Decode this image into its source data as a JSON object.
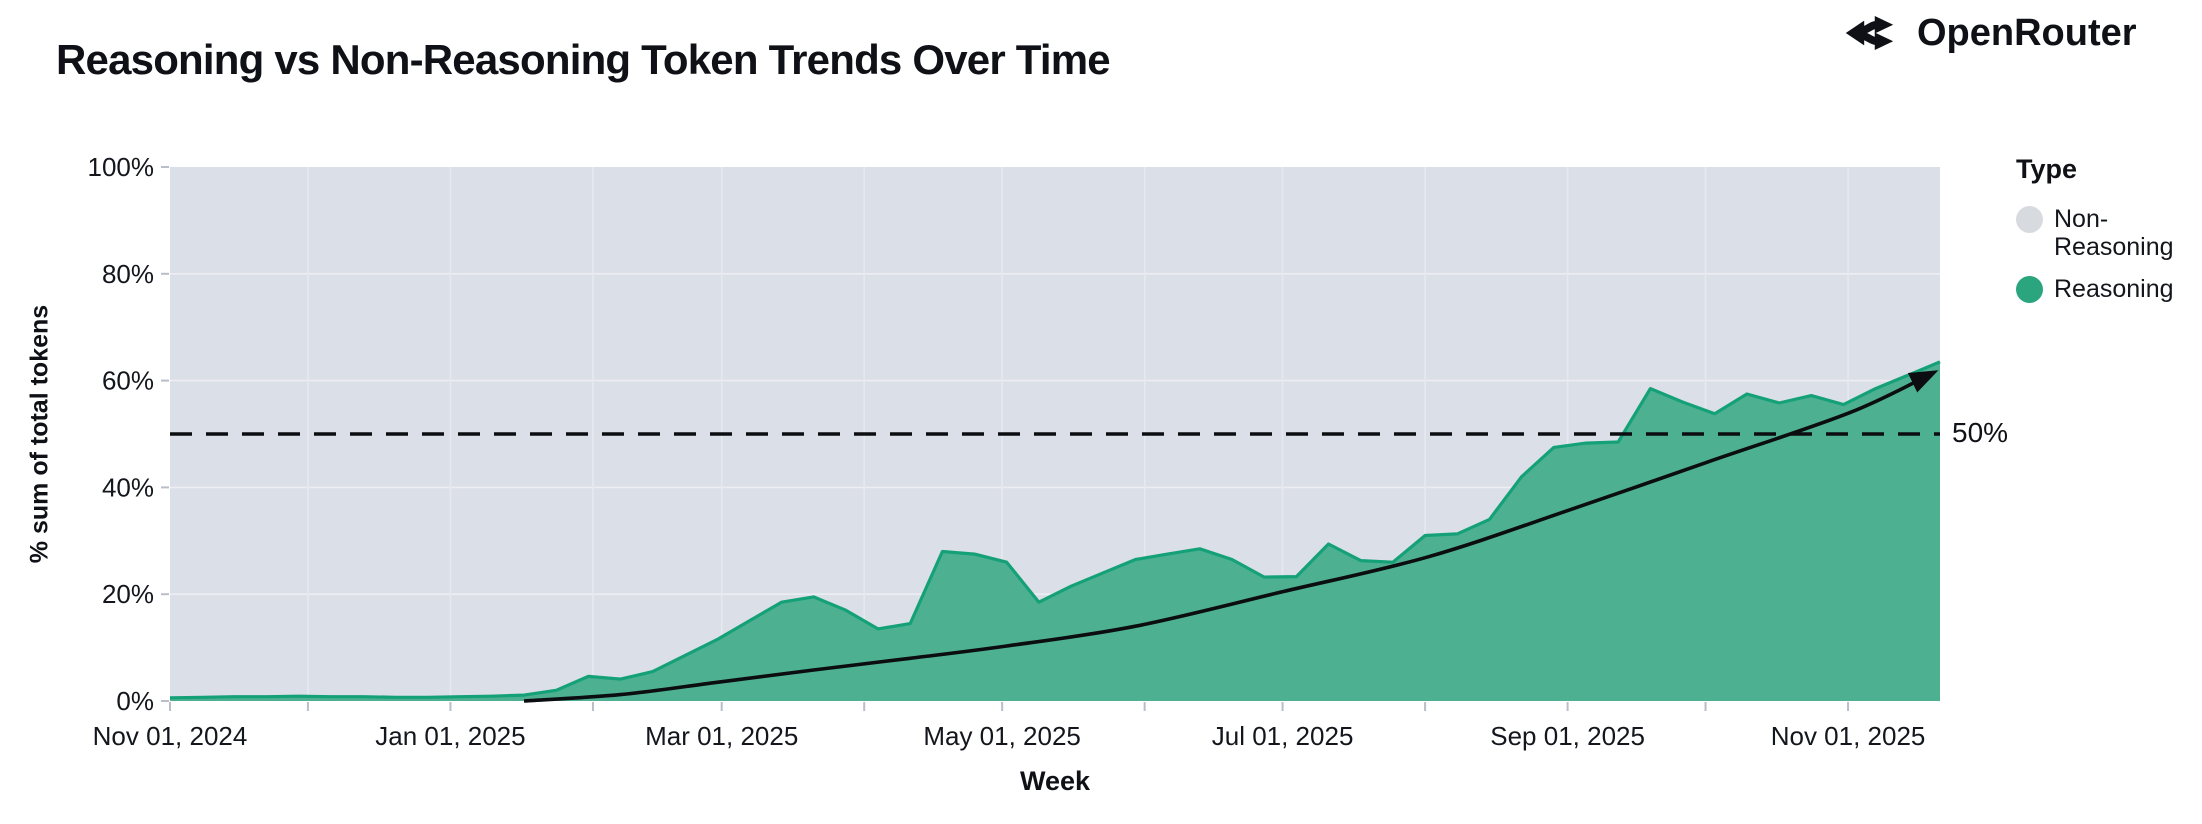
{
  "header": {
    "title": "Reasoning vs Non-Reasoning Token Trends Over Time",
    "brand": "OpenRouter"
  },
  "colors": {
    "reasoning_fill": "#4DB191",
    "reasoning_edge": "#15A177",
    "plot_background": "#DBDFE8",
    "grid_horizontal": "#ECEEF4",
    "grid_vertical": "#E6E9F0",
    "reference_line": "#0B0D11",
    "trend_arrow": "#0B0D11",
    "tick_mark": "#B9BEC9",
    "text": "#14161D",
    "legend_gray": "#D7DADF",
    "legend_green": "#2BA57E"
  },
  "chart_data": {
    "type": "area",
    "variant": "100% stacked area, weekly",
    "title": "Reasoning vs Non-Reasoning Token Trends Over Time",
    "xlabel": "Week",
    "ylabel": "% sum of total tokens",
    "ylim": [
      0,
      100
    ],
    "grid": true,
    "y_ticks": [
      {
        "value": 0,
        "label": "0%"
      },
      {
        "value": 20,
        "label": "20%"
      },
      {
        "value": 40,
        "label": "40%"
      },
      {
        "value": 60,
        "label": "60%"
      },
      {
        "value": 80,
        "label": "80%"
      },
      {
        "value": 100,
        "label": "100%"
      }
    ],
    "x_ticks": [
      {
        "date": "2024-11-01",
        "label": "Nov 01, 2024"
      },
      {
        "date": "2024-12-01",
        "label": ""
      },
      {
        "date": "2025-01-01",
        "label": "Jan 01, 2025"
      },
      {
        "date": "2025-02-01",
        "label": ""
      },
      {
        "date": "2025-03-01",
        "label": "Mar 01, 2025"
      },
      {
        "date": "2025-04-01",
        "label": ""
      },
      {
        "date": "2025-05-01",
        "label": "May 01, 2025"
      },
      {
        "date": "2025-06-01",
        "label": ""
      },
      {
        "date": "2025-07-01",
        "label": "Jul 01, 2025"
      },
      {
        "date": "2025-08-01",
        "label": ""
      },
      {
        "date": "2025-09-01",
        "label": "Sep 01, 2025"
      },
      {
        "date": "2025-10-01",
        "label": ""
      },
      {
        "date": "2025-11-01",
        "label": "Nov 01, 2025"
      }
    ],
    "weeks": [
      "2024-11-01",
      "2024-11-08",
      "2024-11-15",
      "2024-11-22",
      "2024-11-29",
      "2024-12-06",
      "2024-12-13",
      "2024-12-20",
      "2024-12-27",
      "2025-01-03",
      "2025-01-10",
      "2025-01-17",
      "2025-01-24",
      "2025-01-31",
      "2025-02-07",
      "2025-02-14",
      "2025-02-21",
      "2025-02-28",
      "2025-03-07",
      "2025-03-14",
      "2025-03-21",
      "2025-03-28",
      "2025-04-04",
      "2025-04-11",
      "2025-04-18",
      "2025-04-25",
      "2025-05-02",
      "2025-05-09",
      "2025-05-16",
      "2025-05-23",
      "2025-05-30",
      "2025-06-06",
      "2025-06-13",
      "2025-06-20",
      "2025-06-27",
      "2025-07-04",
      "2025-07-11",
      "2025-07-18",
      "2025-07-25",
      "2025-08-01",
      "2025-08-08",
      "2025-08-15",
      "2025-08-22",
      "2025-08-29",
      "2025-09-05",
      "2025-09-12",
      "2025-09-19",
      "2025-09-26",
      "2025-10-03",
      "2025-10-10",
      "2025-10-17",
      "2025-10-24",
      "2025-10-31",
      "2025-11-07",
      "2025-11-14",
      "2025-11-21"
    ],
    "series": [
      {
        "name": "Reasoning",
        "color": "#4DB191",
        "values": [
          0.6,
          0.7,
          0.8,
          0.8,
          0.9,
          0.8,
          0.8,
          0.7,
          0.7,
          0.8,
          0.9,
          1.1,
          2.0,
          4.6,
          4.1,
          5.5,
          8.5,
          11.5,
          15.0,
          18.5,
          19.5,
          17.0,
          13.5,
          14.5,
          28.0,
          27.5,
          26.0,
          18.5,
          21.5,
          24.0,
          26.5,
          27.5,
          28.5,
          26.5,
          23.2,
          23.3,
          29.4,
          26.3,
          26.0,
          31.0,
          31.3,
          34.0,
          42.0,
          47.5,
          48.3,
          48.5,
          58.5,
          56.0,
          53.8,
          57.5,
          55.8,
          57.2,
          55.5,
          58.5,
          61.0,
          63.5
        ]
      },
      {
        "name": "Non-Reasoning",
        "color": "#DBDFE8",
        "values": [
          99.4,
          99.3,
          99.2,
          99.2,
          99.1,
          99.2,
          99.2,
          99.3,
          99.3,
          99.2,
          99.1,
          98.9,
          98.0,
          95.4,
          95.9,
          94.5,
          91.5,
          88.5,
          85.0,
          81.5,
          80.5,
          83.0,
          86.5,
          85.5,
          72.0,
          72.5,
          74.0,
          81.5,
          78.5,
          76.0,
          73.5,
          72.5,
          71.5,
          73.5,
          76.8,
          76.7,
          70.6,
          73.7,
          74.0,
          69.0,
          68.7,
          66.0,
          58.0,
          52.5,
          51.7,
          51.5,
          41.5,
          44.0,
          46.2,
          42.5,
          44.2,
          42.8,
          44.5,
          41.5,
          39.0,
          36.5
        ]
      }
    ],
    "reference_line": {
      "value": 50,
      "label": "50%",
      "style": "dashed"
    },
    "annotation_arrow": {
      "description": "black curved trend arrow from ~0% (mid Jan 2025) to ~62% (mid Nov 2025)",
      "points_week_pct": [
        [
          11,
          0
        ],
        [
          14,
          1.2
        ],
        [
          17,
          3.5
        ],
        [
          20,
          5.8
        ],
        [
          23,
          8.0
        ],
        [
          26,
          10.3
        ],
        [
          30,
          14.0
        ],
        [
          34.6,
          20.5
        ],
        [
          39.1,
          27.0
        ],
        [
          43.5,
          35.8
        ],
        [
          47.8,
          44.8
        ],
        [
          52.2,
          54.0
        ],
        [
          54.8,
          61.5
        ]
      ]
    },
    "legend_position": "right"
  },
  "legend": {
    "title": "Type",
    "items": [
      {
        "label": "Non-Reasoning",
        "color": "#D7DADF"
      },
      {
        "label": "Reasoning",
        "color": "#2BA57E"
      }
    ]
  }
}
